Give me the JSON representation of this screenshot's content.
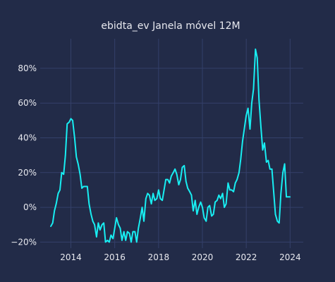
{
  "chart_data": {
    "type": "line",
    "title": "ebidta_ev Janela móvel 12M",
    "xlabel": "",
    "ylabel": "",
    "x_tick_labels": [
      "2014",
      "2016",
      "2018",
      "2020",
      "2022",
      "2024"
    ],
    "x_tick_values": [
      2014,
      2016,
      2018,
      2020,
      2022,
      2024
    ],
    "y_tick_labels": [
      "−20%",
      "0%",
      "20%",
      "40%",
      "60%",
      "80%"
    ],
    "y_tick_values": [
      -0.2,
      0,
      0.2,
      0.4,
      0.6,
      0.8
    ],
    "xlim": [
      2012.6,
      2024.6
    ],
    "ylim": [
      -0.235,
      0.97
    ],
    "grid": true,
    "colors": {
      "background": "#222b48",
      "grid": "#34406a",
      "line": "#18eef2",
      "text": "#e8e9ef"
    },
    "series": [
      {
        "x": [
          2013.08,
          2013.17,
          2013.25,
          2013.33,
          2013.42,
          2013.5,
          2013.58,
          2013.67,
          2013.75,
          2013.83,
          2013.92,
          2014.0,
          2014.08,
          2014.17,
          2014.25,
          2014.33,
          2014.42,
          2014.5,
          2014.58,
          2014.67,
          2014.75,
          2014.83,
          2014.92,
          2015.0,
          2015.08,
          2015.17,
          2015.25,
          2015.33,
          2015.42,
          2015.5,
          2015.58,
          2015.67,
          2015.75,
          2015.83,
          2015.92,
          2016.0,
          2016.08,
          2016.17,
          2016.25,
          2016.33,
          2016.42,
          2016.5,
          2016.58,
          2016.67,
          2016.75,
          2016.83,
          2016.92,
          2017.0,
          2017.08,
          2017.17,
          2017.25,
          2017.33,
          2017.42,
          2017.5,
          2017.58,
          2017.67,
          2017.75,
          2017.83,
          2017.92,
          2018.0,
          2018.08,
          2018.17,
          2018.25,
          2018.33,
          2018.42,
          2018.5,
          2018.58,
          2018.67,
          2018.75,
          2018.83,
          2018.92,
          2019.0,
          2019.08,
          2019.17,
          2019.25,
          2019.33,
          2019.42,
          2019.5,
          2019.58,
          2019.67,
          2019.75,
          2019.83,
          2019.92,
          2020.0,
          2020.08,
          2020.17,
          2020.25,
          2020.33,
          2020.42,
          2020.5,
          2020.58,
          2020.67,
          2020.75,
          2020.83,
          2020.92,
          2021.0,
          2021.08,
          2021.17,
          2021.25,
          2021.33,
          2021.42,
          2021.5,
          2021.58,
          2021.67,
          2021.75,
          2021.83,
          2021.92,
          2022.0,
          2022.08,
          2022.17,
          2022.25,
          2022.33,
          2022.42,
          2022.5,
          2022.58,
          2022.67,
          2022.75,
          2022.83,
          2022.92,
          2023.0,
          2023.08,
          2023.17,
          2023.25,
          2023.33,
          2023.42,
          2023.5,
          2023.58,
          2023.67,
          2023.75,
          2023.83,
          2023.92,
          2024.0
        ],
        "values": [
          -0.11,
          -0.09,
          -0.02,
          0.02,
          0.08,
          0.1,
          0.2,
          0.19,
          0.3,
          0.48,
          0.49,
          0.51,
          0.5,
          0.4,
          0.29,
          0.25,
          0.19,
          0.11,
          0.12,
          0.12,
          0.12,
          0.02,
          -0.04,
          -0.08,
          -0.1,
          -0.17,
          -0.09,
          -0.13,
          -0.1,
          -0.09,
          -0.2,
          -0.19,
          -0.2,
          -0.16,
          -0.18,
          -0.12,
          -0.06,
          -0.1,
          -0.12,
          -0.19,
          -0.14,
          -0.19,
          -0.14,
          -0.15,
          -0.2,
          -0.14,
          -0.14,
          -0.2,
          -0.12,
          -0.06,
          0.0,
          -0.08,
          0.05,
          0.08,
          0.07,
          0.02,
          0.08,
          0.04,
          0.05,
          0.1,
          0.05,
          0.04,
          0.1,
          0.16,
          0.16,
          0.14,
          0.18,
          0.2,
          0.22,
          0.19,
          0.13,
          0.16,
          0.23,
          0.24,
          0.15,
          0.11,
          0.09,
          0.07,
          -0.02,
          0.04,
          -0.04,
          0.0,
          0.03,
          0.0,
          -0.06,
          -0.08,
          0.0,
          0.01,
          -0.05,
          -0.04,
          0.03,
          0.04,
          0.07,
          0.05,
          0.08,
          0.0,
          0.02,
          0.14,
          0.1,
          0.1,
          0.09,
          0.14,
          0.16,
          0.2,
          0.28,
          0.38,
          0.46,
          0.53,
          0.57,
          0.45,
          0.6,
          0.68,
          0.91,
          0.86,
          0.62,
          0.46,
          0.33,
          0.37,
          0.26,
          0.27,
          0.22,
          0.22,
          0.09,
          -0.04,
          -0.08,
          -0.09,
          0.08,
          0.2,
          0.25,
          0.06,
          0.06,
          0.06
        ]
      }
    ]
  }
}
